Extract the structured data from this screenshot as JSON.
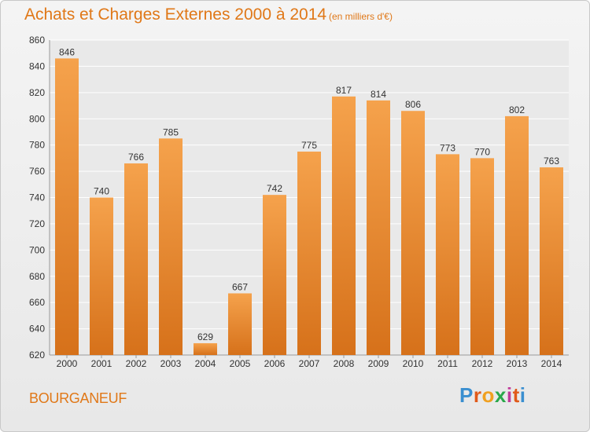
{
  "header": {
    "title": "Achats et Charges Externes 2000 à 2014",
    "subtitle": "(en milliers d'€)"
  },
  "footer": {
    "location": "BOURGANEUF",
    "brand": "Proxiti"
  },
  "colors": {
    "accent": "#e07818",
    "bar_top": "#f5a24c",
    "bar_bottom": "#d6711a",
    "grid": "#ffffff",
    "brand_letters": [
      "#3a8fd0",
      "#e05a1a",
      "#f0a020",
      "#2aa84a",
      "#c03a9a",
      "#e05a1a",
      "#3a8fd0"
    ]
  },
  "chart_data": {
    "type": "bar",
    "title": "Achats et Charges Externes 2000 à 2014",
    "subtitle": "(en milliers d'€)",
    "categories": [
      "2000",
      "2001",
      "2002",
      "2003",
      "2004",
      "2005",
      "2006",
      "2007",
      "2008",
      "2009",
      "2010",
      "2011",
      "2012",
      "2013",
      "2014"
    ],
    "values": [
      846,
      740,
      766,
      785,
      629,
      667,
      742,
      775,
      817,
      814,
      806,
      773,
      770,
      802,
      763
    ],
    "ylim": [
      620,
      860
    ],
    "yticks": [
      620,
      640,
      660,
      680,
      700,
      720,
      740,
      760,
      780,
      800,
      820,
      840,
      860
    ],
    "grid": true,
    "xlabel": "",
    "ylabel": ""
  }
}
